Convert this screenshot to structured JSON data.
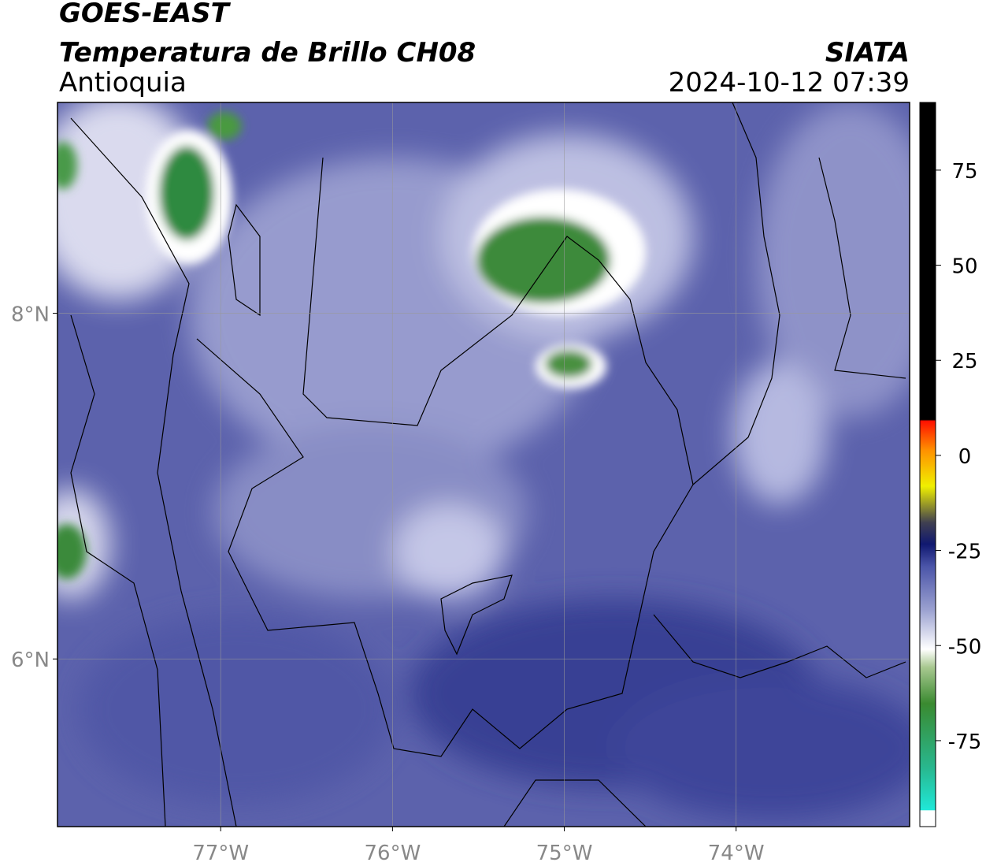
{
  "chart_data": {
    "type": "map",
    "title": "GOES-EAST",
    "subtitle": "Temperatura de Brillo CH08",
    "region": "Antioquia",
    "source": "SIATA",
    "timestamp": "2024-10-12 07:39",
    "xlim": [
      -77.95,
      -72.99
    ],
    "ylim": [
      5.03,
      9.22
    ],
    "xticks": [
      {
        "value": -77,
        "label": "77°W"
      },
      {
        "value": -76,
        "label": "76°W"
      },
      {
        "value": -75,
        "label": "75°W"
      },
      {
        "value": -74,
        "label": "74°W"
      }
    ],
    "yticks": [
      {
        "value": 8,
        "label": "8°N"
      },
      {
        "value": 6,
        "label": "6°N"
      }
    ],
    "grid": true,
    "colorbar": {
      "lim": [
        -97.6,
        92.8
      ],
      "ticks": [
        75,
        50,
        25,
        0,
        -25,
        -50,
        -75
      ]
    }
  }
}
